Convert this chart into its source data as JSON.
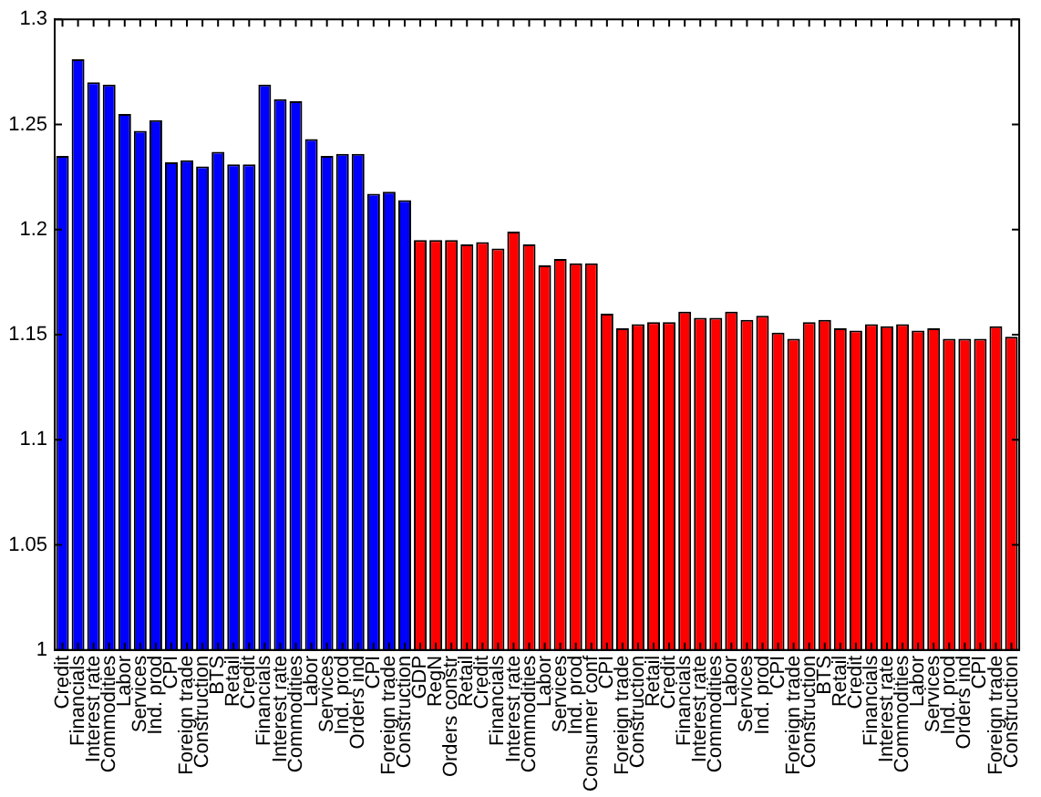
{
  "chart_data": {
    "type": "bar",
    "categories": [
      "Credit",
      "Financials",
      "Interest rate",
      "Commodities",
      "Labor",
      "Services",
      "Ind. prod",
      "CPI",
      "Foreign trade",
      "Construction",
      "BTS",
      "Retail",
      "Credit",
      "Financials",
      "Interest rate",
      "Commodities",
      "Labor",
      "Services",
      "Ind. prod",
      "Orders ind",
      "CPI",
      "Foreign trade",
      "Construction",
      "GDP",
      "RegN",
      "Orders constr",
      "Retail",
      "Credit",
      "Financials",
      "Interest rate",
      "Commodities",
      "Labor",
      "Services",
      "Ind. prod",
      "Consumer conf",
      "CPI",
      "Foreign trade",
      "Construction",
      "Retail",
      "Credit",
      "Financials",
      "Interest rate",
      "Commodities",
      "Labor",
      "Services",
      "Ind. prod",
      "CPI",
      "Foreign trade",
      "Construction",
      "BTS",
      "Retail",
      "Credit",
      "Financials",
      "Interest rate",
      "Commodities",
      "Labor",
      "Services",
      "Ind. prod",
      "Orders ind",
      "CPI",
      "Foreign trade",
      "Construction"
    ],
    "values": [
      1.235,
      1.281,
      1.27,
      1.269,
      1.255,
      1.247,
      1.252,
      1.232,
      1.233,
      1.23,
      1.237,
      1.231,
      1.231,
      1.269,
      1.262,
      1.261,
      1.243,
      1.235,
      1.236,
      1.236,
      1.217,
      1.218,
      1.214,
      1.195,
      1.195,
      1.195,
      1.193,
      1.194,
      1.191,
      1.199,
      1.193,
      1.183,
      1.186,
      1.184,
      1.184,
      1.16,
      1.153,
      1.155,
      1.156,
      1.156,
      1.161,
      1.158,
      1.158,
      1.161,
      1.157,
      1.159,
      1.151,
      1.148,
      1.156,
      1.157,
      1.153,
      1.152,
      1.155,
      1.154,
      1.155,
      1.152,
      1.153,
      1.148,
      1.148,
      1.148,
      1.154,
      1.149
    ],
    "colors": [
      "#0000ff",
      "#0000ff",
      "#0000ff",
      "#0000ff",
      "#0000ff",
      "#0000ff",
      "#0000ff",
      "#0000ff",
      "#0000ff",
      "#0000ff",
      "#0000ff",
      "#0000ff",
      "#0000ff",
      "#0000ff",
      "#0000ff",
      "#0000ff",
      "#0000ff",
      "#0000ff",
      "#0000ff",
      "#0000ff",
      "#0000ff",
      "#0000ff",
      "#0000ff",
      "#ff0000",
      "#ff0000",
      "#ff0000",
      "#ff0000",
      "#ff0000",
      "#ff0000",
      "#ff0000",
      "#ff0000",
      "#ff0000",
      "#ff0000",
      "#ff0000",
      "#ff0000",
      "#ff0000",
      "#ff0000",
      "#ff0000",
      "#ff0000",
      "#ff0000",
      "#ff0000",
      "#ff0000",
      "#ff0000",
      "#ff0000",
      "#ff0000",
      "#ff0000",
      "#ff0000",
      "#ff0000",
      "#ff0000",
      "#ff0000",
      "#ff0000",
      "#ff0000",
      "#ff0000",
      "#ff0000",
      "#ff0000",
      "#ff0000",
      "#ff0000",
      "#ff0000",
      "#ff0000",
      "#ff0000",
      "#ff0000",
      "#ff0000"
    ],
    "ylim": [
      1,
      1.3
    ],
    "yticks": [
      1,
      1.05,
      1.1,
      1.15,
      1.2,
      1.25,
      1.3
    ],
    "grid": false,
    "legend": false
  }
}
